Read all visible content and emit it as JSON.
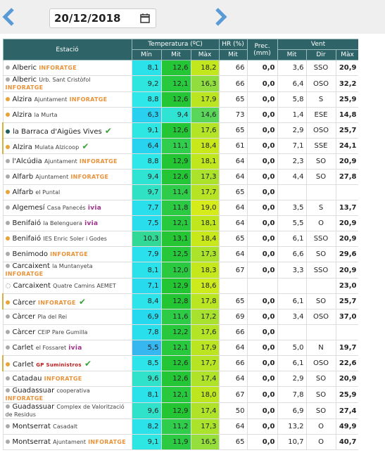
{
  "header": {
    "date": "20/12/2018"
  },
  "table": {
    "columns": {
      "station": "Estació",
      "temperature": "Temperatura (ºC)",
      "humidity": "HR (%)",
      "precipitation": "Prec. (mm)",
      "wind": "Vent",
      "min": "Mín",
      "mit": "Mit",
      "max": "Màx",
      "hr_mit": "Mit",
      "wind_mit": "Mit",
      "dir": "Dir",
      "wind_max": "Màx"
    },
    "rows": [
      {
        "station": "Alberic",
        "location": null,
        "sponsor": "INFORATGE",
        "dot": "#aaaaaa",
        "cells": [
          "8,1",
          "12,6",
          "18,2",
          "66",
          "0,0",
          "3,6",
          "SSO",
          "20,9"
        ]
      },
      {
        "station": "Alberic",
        "location": "Urb. Sant Cristòfol",
        "sponsor": "INFORATGE",
        "dot": "#aaaaaa",
        "cells": [
          "9,2",
          "12,1",
          "16,3",
          "66",
          "0,0",
          "6,4",
          "OSO",
          "32,2"
        ]
      },
      {
        "station": "Alzira",
        "location": "Ajuntament",
        "sponsor": "INFORATGE",
        "dot": "#e8a33a",
        "cells": [
          "8,8",
          "12,6",
          "17,9",
          "65",
          "0,0",
          "5,8",
          "S",
          "25,9"
        ]
      },
      {
        "station": "Alzira",
        "location": "la Murta",
        "sponsor": null,
        "dot": "#e8a33a",
        "cells": [
          "6,3",
          "9,4",
          "14,6",
          "73",
          "0,0",
          "1,4",
          "ESE",
          "14,8"
        ]
      },
      {
        "station": "la Barraca d'Aigües Vives",
        "location": null,
        "sponsor": null,
        "verified": true,
        "dot": "#1f5c5c",
        "cells": [
          "9,1",
          "12,6",
          "17,6",
          "65",
          "0,0",
          "2,9",
          "OSO",
          "25,7"
        ]
      },
      {
        "station": "Alzira",
        "location": "Mulata Alzicoop",
        "sponsor": null,
        "verified": true,
        "dot": "#e8a33a",
        "cells": [
          "6,4",
          "11,1",
          "18,4",
          "61",
          "0,0",
          "7,1",
          "SSE",
          "24,1"
        ]
      },
      {
        "station": "l'Alcúdia",
        "location": "Ajuntament",
        "sponsor": "INFORATGE",
        "dot": "#aaaaaa",
        "cells": [
          "8,8",
          "12,9",
          "18,1",
          "64",
          "0,0",
          "2,3",
          "SO",
          "20,9"
        ]
      },
      {
        "station": "Alfarb",
        "location": "Ajuntament",
        "sponsor": "INFORATGE",
        "dot": "#aaaaaa",
        "cells": [
          "9,4",
          "12,6",
          "17,3",
          "64",
          "0,0",
          "4,4",
          "SO",
          "27,8"
        ]
      },
      {
        "station": "Alfarb",
        "location": "el Puntal",
        "sponsor": null,
        "dot": "#e8a33a",
        "cells": [
          "9,7",
          "11,4",
          "17,7",
          "65",
          "0,0",
          null,
          null,
          null
        ]
      },
      {
        "station": "Algemesí",
        "location": "Casa Panecés",
        "sponsor": "ivia",
        "dot": "#aaaaaa",
        "cells": [
          "7,7",
          "11,8",
          "19,0",
          "64",
          "0,0",
          "3,5",
          "S",
          "13,7"
        ]
      },
      {
        "station": "Benifaió",
        "location": "la Belenguera",
        "sponsor": "ivia",
        "dot": "#aaaaaa",
        "cells": [
          "7,5",
          "12,1",
          "18,1",
          "64",
          "0,0",
          "5,5",
          "O",
          "20,9"
        ]
      },
      {
        "station": "Benifaió",
        "location": "IES Enric Soler i Godes",
        "sponsor": null,
        "dot": "#e8a33a",
        "cells": [
          "10,3",
          "13,1",
          "18,4",
          "65",
          "0,0",
          "6,1",
          "SSO",
          "20,9"
        ]
      },
      {
        "station": "Benimodo",
        "location": null,
        "sponsor": "INFORATGE",
        "dot": "#aaaaaa",
        "cells": [
          "7,9",
          "12,5",
          "17,3",
          "64",
          "0,0",
          "6,6",
          "SO",
          "29,6"
        ]
      },
      {
        "station": "Carcaixent",
        "location": "la Muntanyeta",
        "sponsor": "INFORATGE",
        "dot": "#aaaaaa",
        "cells": [
          "8,1",
          "12,0",
          "18,3",
          "67",
          "0,0",
          "3,3",
          "SSO",
          "20,9"
        ]
      },
      {
        "station": "Carcaixent",
        "location": "Quatre Camins AEMET",
        "sponsor": null,
        "dot": "none",
        "cells": [
          "7,1",
          "12,9",
          "18,6",
          null,
          null,
          null,
          null,
          "23,0"
        ]
      },
      {
        "station": "Càrcer",
        "location": null,
        "sponsor": "INFORATGE",
        "verified": true,
        "dot": "#e8a33a",
        "cells": [
          "8,4",
          "12,8",
          "17,8",
          "65",
          "0,0",
          "6,1",
          "SO",
          "25,7"
        ]
      },
      {
        "station": "Càrcer",
        "location": "Pla del Rei",
        "sponsor": null,
        "dot": "#aaaaaa",
        "cells": [
          "6,9",
          "11,6",
          "17,2",
          "69",
          "0,0",
          "3,4",
          "OSO",
          "37,0"
        ]
      },
      {
        "station": "Càrcer",
        "location": "CEIP Pare Gumilla",
        "sponsor": null,
        "dot": "#aaaaaa",
        "cells": [
          "7,8",
          "12,2",
          "17,6",
          "66",
          "0,0",
          null,
          null,
          null
        ]
      },
      {
        "station": "Carlet",
        "location": "el Fossaret",
        "sponsor": "ivia",
        "dot": "#aaaaaa",
        "cells": [
          "5,5",
          "12,1",
          "17,9",
          "64",
          "0,0",
          "5,0",
          "N",
          "19,7"
        ]
      },
      {
        "station": "Carlet",
        "location": null,
        "sponsor": "GP Suministros",
        "verified": true,
        "dot": "#e8a33a",
        "cells": [
          "8,5",
          "12,6",
          "17,7",
          "66",
          "0,0",
          "6,1",
          "OSO",
          "22,6"
        ]
      },
      {
        "station": "Catadau",
        "location": null,
        "sponsor": "INFORATGE",
        "dot": "#aaaaaa",
        "cells": [
          "9,6",
          "12,6",
          "17,4",
          "64",
          "0,0",
          "2,9",
          "SO",
          "20,9"
        ]
      },
      {
        "station": "Guadassuar",
        "location": "cooperativa",
        "sponsor": "INFORATGE",
        "dot": "#aaaaaa",
        "cells": [
          "8,1",
          "12,1",
          "18,0",
          "67",
          "0,0",
          "7,8",
          "SO",
          "25,9"
        ]
      },
      {
        "station": "Guadassuar",
        "location": "Complex de Valorització de Residus",
        "sponsor": null,
        "dot": "#aaaaaa",
        "cells": [
          "9,6",
          "12,9",
          "17,4",
          "50",
          "0,0",
          "6,9",
          "SO",
          "27,4"
        ]
      },
      {
        "station": "Montserrat",
        "location": "Casadalt",
        "sponsor": null,
        "dot": "#aaaaaa",
        "cells": [
          "8,2",
          "11,2",
          "17,3",
          "64",
          "0,0",
          "13,2",
          "O",
          "49,9"
        ]
      },
      {
        "station": "Montserrat",
        "location": "Ajuntament",
        "sponsor": "INFORATGE",
        "dot": "#aaaaaa",
        "cells": [
          "9,1",
          "11,9",
          "16,5",
          "65",
          "0,0",
          "10,7",
          "O",
          "40,7"
        ]
      }
    ]
  }
}
